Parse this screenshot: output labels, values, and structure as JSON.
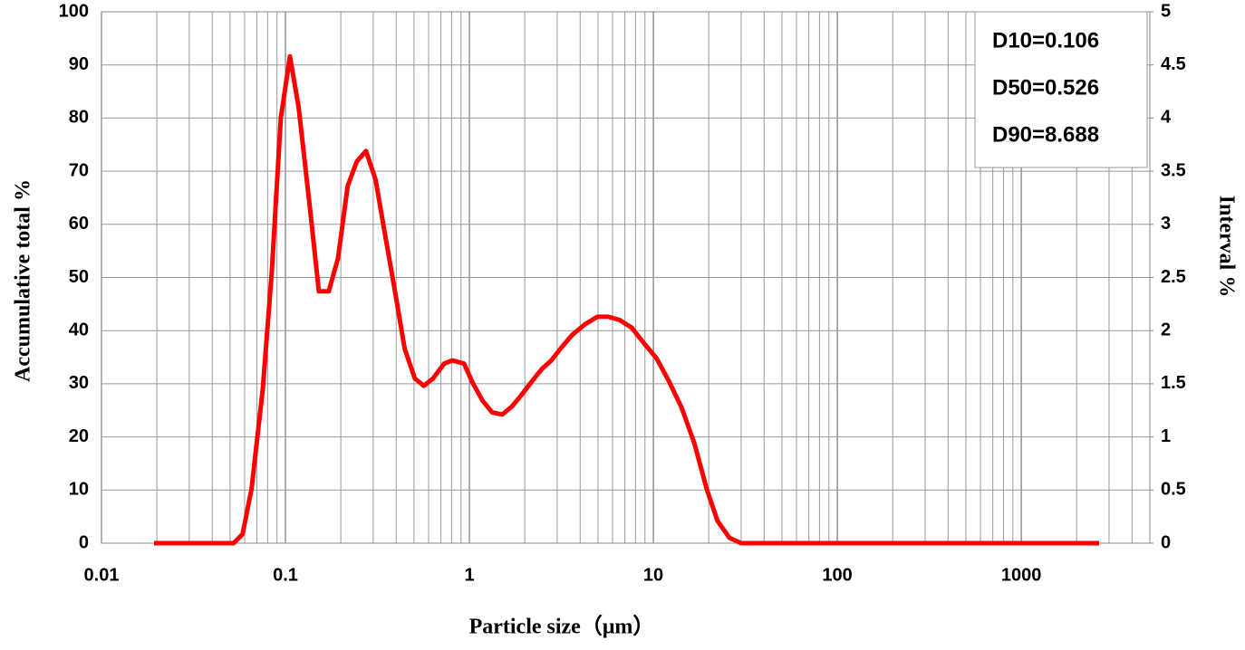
{
  "chart_data": {
    "type": "line",
    "x_label": "Particle size（μm）",
    "y_label": "Accumulative total  %",
    "y2_label": "Interval  %",
    "log_x": true,
    "grid": true,
    "xlim": [
      0.01,
      5000
    ],
    "xticks": [
      0.01,
      0.1,
      1,
      10,
      100,
      1000
    ],
    "ylim": [
      0,
      100
    ],
    "yticks": [
      0,
      10,
      20,
      30,
      40,
      50,
      60,
      70,
      80,
      90,
      100
    ],
    "y2lim": [
      0,
      5
    ],
    "y2ticks": [
      0,
      0.5,
      1,
      1.5,
      2,
      2.5,
      3,
      3.5,
      4,
      4.5,
      5
    ],
    "annotations": [
      "D10=0.106",
      "D50=0.526",
      "D90=8.688"
    ],
    "series": [
      {
        "color": "#ff0000",
        "axis": "y2",
        "x": [
          0.0193,
          0.0523,
          0.0585,
          0.0654,
          0.0753,
          0.0843,
          0.0944,
          0.1058,
          0.118,
          0.136,
          0.152,
          0.172,
          0.193,
          0.218,
          0.244,
          0.274,
          0.309,
          0.345,
          0.392,
          0.445,
          0.505,
          0.565,
          0.634,
          0.729,
          0.81,
          0.935,
          1.04,
          1.18,
          1.33,
          1.51,
          1.71,
          1.91,
          2.16,
          2.48,
          2.79,
          3.16,
          3.62,
          4.25,
          4.97,
          5.7,
          6.55,
          7.6,
          9.0,
          10.4,
          12.1,
          14.2,
          16.7,
          19.5,
          22.3,
          25.9,
          30,
          2650
        ],
        "values": [
          0,
          0,
          0.085,
          0.51,
          1.45,
          2.56,
          4.0,
          4.58,
          4.1,
          3.15,
          2.37,
          2.37,
          2.68,
          3.36,
          3.59,
          3.69,
          3.42,
          2.94,
          2.39,
          1.83,
          1.55,
          1.48,
          1.55,
          1.69,
          1.72,
          1.69,
          1.51,
          1.34,
          1.23,
          1.21,
          1.29,
          1.39,
          1.51,
          1.64,
          1.72,
          1.84,
          1.96,
          2.06,
          2.13,
          2.13,
          2.1,
          2.03,
          1.87,
          1.74,
          1.53,
          1.28,
          0.94,
          0.51,
          0.21,
          0.05,
          0,
          0
        ]
      }
    ]
  }
}
